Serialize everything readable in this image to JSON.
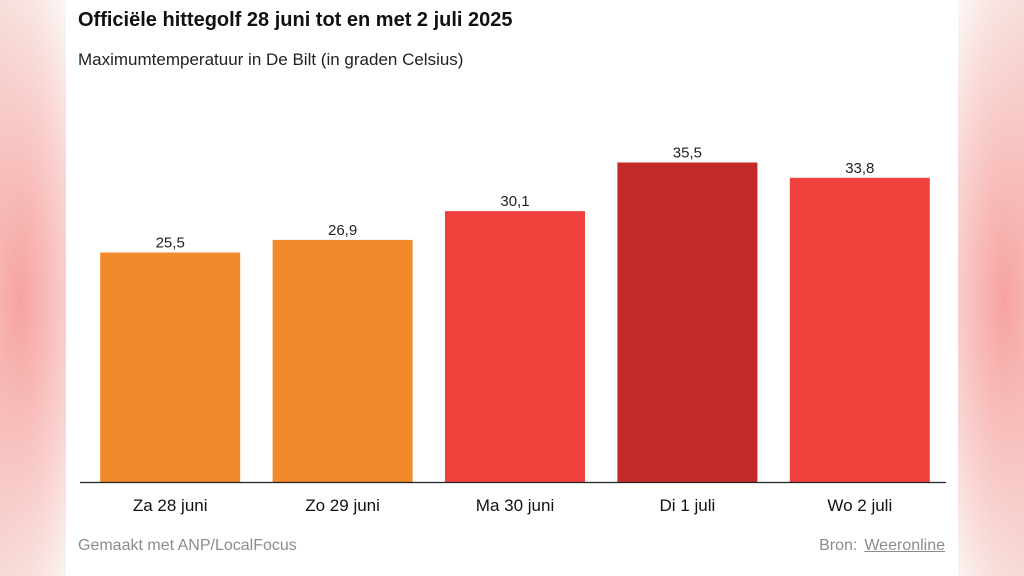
{
  "title": "Officiële hittegolf 28 juni tot en met 2 juli 2025",
  "subtitle": "Maximumtemperatuur in De Bilt (in graden Celsius)",
  "footer": {
    "credit": "Gemaakt met ANP/LocalFocus",
    "source_label": "Bron:",
    "source_link": "Weeronline"
  },
  "chart_data": {
    "type": "bar",
    "categories": [
      "Za 28 juni",
      "Zo 29 juni",
      "Ma 30 juni",
      "Di 1 juli",
      "Wo 2 juli"
    ],
    "values": [
      25.5,
      26.9,
      30.1,
      35.5,
      33.8
    ],
    "value_labels": [
      "25,5",
      "26,9",
      "30,1",
      "35,5",
      "33,8"
    ],
    "colors": [
      "#f2892a",
      "#f2892a",
      "#ef403b",
      "#c42b28",
      "#ef403b"
    ],
    "ylim": [
      0,
      40
    ],
    "grid": false,
    "legend": "none",
    "xlabel": "",
    "ylabel": ""
  }
}
